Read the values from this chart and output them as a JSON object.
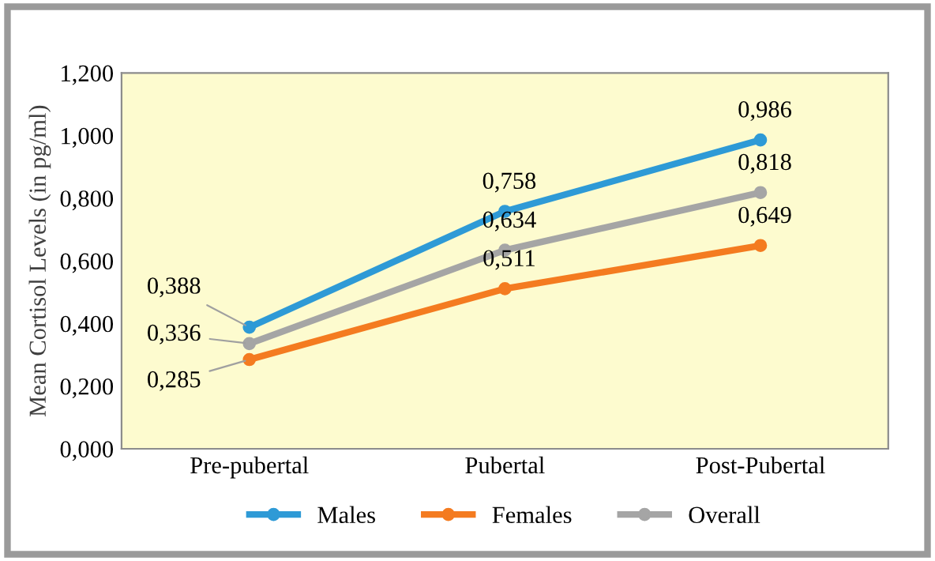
{
  "chart_data": {
    "type": "line",
    "ylabel": "Mean Cortisol Levels (in pg/ml)",
    "categories": [
      "Pre-pubertal",
      "Pubertal",
      "Post-Pubertal"
    ],
    "series": [
      {
        "name": "Males",
        "color": "#2e9ad6",
        "values": [
          0.388,
          0.758,
          0.986
        ],
        "value_labels": [
          "0,388",
          "0,758",
          "0,986"
        ]
      },
      {
        "name": "Females",
        "color": "#f47b20",
        "values": [
          0.285,
          0.511,
          0.649
        ],
        "value_labels": [
          "0,285",
          "0,511",
          "0,649"
        ]
      },
      {
        "name": "Overall",
        "color": "#a5a5a5",
        "values": [
          0.336,
          0.634,
          0.818
        ],
        "value_labels": [
          "0,336",
          "0,634",
          "0,818"
        ]
      }
    ],
    "ylim": [
      0,
      1.2
    ],
    "yticks": [
      {
        "value": 0,
        "label": "0,000"
      },
      {
        "value": 0.2,
        "label": "0,200"
      },
      {
        "value": 0.4,
        "label": "0,400"
      },
      {
        "value": 0.6,
        "label": "0,600"
      },
      {
        "value": 0.8,
        "label": "0,800"
      },
      {
        "value": 1.0,
        "label": "1,000"
      },
      {
        "value": 1.2,
        "label": "1,200"
      }
    ],
    "grid": false,
    "legend": "bottom",
    "marker": "circle",
    "line_style": "solid"
  }
}
